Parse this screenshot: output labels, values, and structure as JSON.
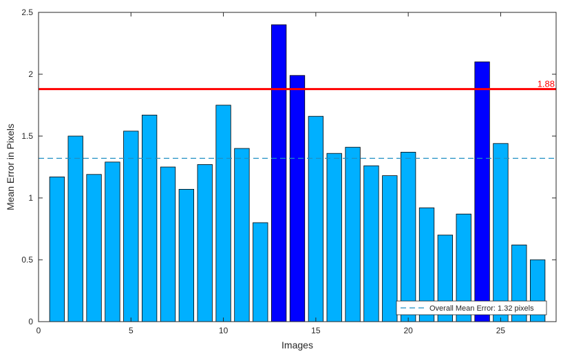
{
  "chart_data": {
    "type": "bar",
    "x": [
      1,
      2,
      3,
      4,
      5,
      6,
      7,
      8,
      9,
      10,
      11,
      12,
      13,
      14,
      15,
      16,
      17,
      18,
      19,
      20,
      21,
      22,
      23,
      24,
      25,
      26,
      27
    ],
    "values": [
      1.17,
      1.5,
      1.19,
      1.29,
      1.54,
      1.67,
      1.25,
      1.07,
      1.27,
      1.75,
      1.4,
      0.8,
      2.4,
      1.99,
      1.66,
      1.36,
      1.41,
      1.26,
      1.18,
      1.37,
      0.92,
      0.7,
      0.87,
      2.1,
      1.44,
      0.62,
      0.5
    ],
    "highlighted_indices": [
      13,
      14,
      24
    ],
    "xlim": [
      0,
      28
    ],
    "ylim": [
      0,
      2.5
    ],
    "xticks": [
      0,
      5,
      10,
      15,
      20,
      25
    ],
    "yticks": [
      0,
      0.5,
      1,
      1.5,
      2,
      2.5
    ],
    "xtick_labels": [
      "0",
      "5",
      "10",
      "15",
      "20",
      "25"
    ],
    "ytick_labels": [
      "0",
      "0.5",
      "1",
      "1.5",
      "2",
      "2.5"
    ],
    "xlabel": "Images",
    "ylabel": "Mean Error in Pixels",
    "overall_mean": 1.32,
    "threshold": 1.88,
    "threshold_label": "1.88",
    "legend": {
      "entry": "Overall Mean Error: 1.32 pixels",
      "placement": "bottom-right"
    },
    "grid": false,
    "colors": {
      "bar": "#00b0ff",
      "bar_highlight": "#0000ff",
      "bar_edge": "#000000",
      "mean_line": "#1f8fc4",
      "threshold_line": "#ff0000",
      "axis": "#262626",
      "text": "#262626"
    }
  }
}
